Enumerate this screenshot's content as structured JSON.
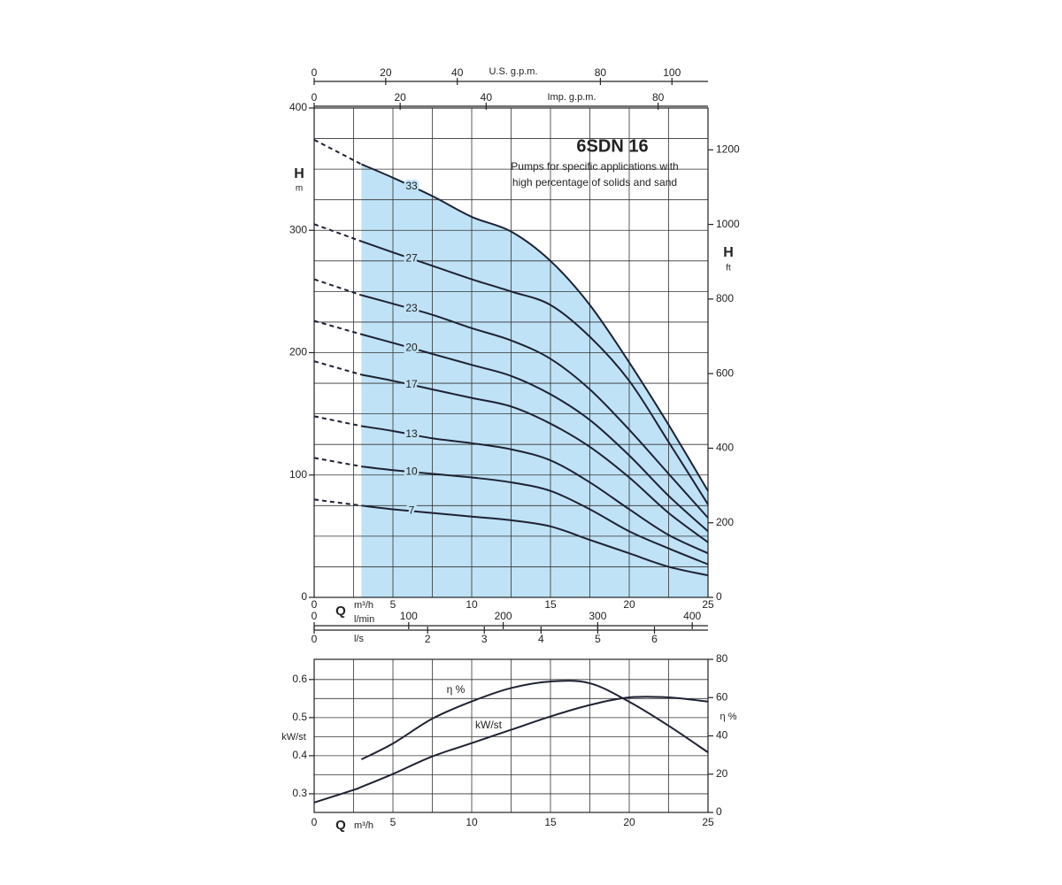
{
  "chart_data": [
    {
      "type": "line",
      "title": "6SDN 16",
      "subtitle": [
        "Pumps for specific applications with",
        "high percentage of solids and sand"
      ],
      "xlabel": "Q",
      "xunit": "m³/h",
      "ylabel": "H",
      "yunit": "m",
      "y2label": "H",
      "y2unit": "ft",
      "x": [
        0,
        3,
        5,
        7.5,
        10,
        12.5,
        15,
        17.5,
        20,
        22.5,
        25
      ],
      "xlim": [
        0,
        25
      ],
      "xticks": [
        0,
        5,
        10,
        15,
        20,
        25
      ],
      "minor_xticks": [
        2.5,
        7.5,
        12.5,
        17.5,
        22.5
      ],
      "ylim": [
        0,
        400
      ],
      "yticks": [
        0,
        100,
        200,
        300,
        400
      ],
      "minor_yticks": [
        25,
        50,
        75,
        125,
        150,
        175,
        225,
        250,
        275,
        325,
        350,
        375
      ],
      "y2lim": [
        0,
        1312.3
      ],
      "y2ticks": [
        0,
        200,
        400,
        600,
        800,
        1000,
        1200
      ],
      "grid": true,
      "shade_color": "#bfe2f6",
      "series": [
        {
          "name": "33",
          "color": "#1e2233",
          "values": [
            374,
            354,
            343,
            328,
            311,
            299,
            275,
            239,
            192,
            141,
            87
          ]
        },
        {
          "name": "27",
          "color": "#1e2233",
          "values": [
            305,
            291,
            282,
            271,
            260,
            250,
            239,
            213,
            177,
            127,
            76
          ]
        },
        {
          "name": "23",
          "color": "#1e2233",
          "values": [
            260,
            247,
            240,
            231,
            220,
            210,
            195,
            170,
            137,
            101,
            65
          ]
        },
        {
          "name": "20",
          "color": "#1e2233",
          "values": [
            226,
            215,
            208,
            199,
            190,
            181,
            166,
            145,
            116,
            83,
            54
          ]
        },
        {
          "name": "17",
          "color": "#1e2233",
          "values": [
            193,
            182,
            177,
            170,
            163,
            156,
            142,
            123,
            98,
            69,
            45
          ]
        },
        {
          "name": "13",
          "color": "#1e2233",
          "values": [
            148,
            140,
            136,
            130,
            126,
            121,
            112,
            94,
            72,
            51,
            36
          ]
        },
        {
          "name": "10",
          "color": "#1e2233",
          "values": [
            114,
            107,
            104,
            101,
            98,
            94,
            87,
            72,
            54,
            40,
            27
          ]
        },
        {
          "name": "7",
          "color": "#1e2233",
          "values": [
            80,
            75,
            72,
            69,
            66,
            63,
            58,
            47,
            36,
            25,
            18
          ]
        }
      ],
      "top_axes": [
        {
          "label": "U.S. g.p.m.",
          "xlim": [
            0,
            110.08
          ],
          "xticks": [
            0,
            20,
            40,
            80,
            100
          ]
        },
        {
          "label": "Imp. g.p.m.",
          "xlim": [
            0,
            91.6
          ],
          "xticks": [
            0,
            20,
            40,
            80
          ]
        }
      ],
      "bottom_axes": [
        {
          "label": "l/min",
          "xlim": [
            0,
            416.7
          ],
          "xticks": [
            0,
            100,
            200,
            300,
            400
          ]
        },
        {
          "label": "l/s",
          "xlim": [
            0,
            6.944
          ],
          "xticks": [
            0,
            2,
            3,
            4,
            5,
            6
          ]
        }
      ]
    },
    {
      "type": "line",
      "xlabel": "Q",
      "xunit": "m³/h",
      "ylabel": "kW/st",
      "y2label": "η %",
      "x": [
        0,
        2.5,
        3,
        5,
        7.5,
        10,
        12.5,
        15,
        17.5,
        20,
        22.5,
        25
      ],
      "xlim": [
        0,
        25
      ],
      "xticks": [
        0,
        5,
        10,
        15,
        20,
        25
      ],
      "minor_xticks": [
        2.5,
        7.5,
        12.5,
        17.5,
        22.5
      ],
      "ylim": [
        0.251,
        0.653
      ],
      "yticks": [
        0.3,
        0.4,
        0.5,
        0.6
      ],
      "minor_yticks": [
        0.35,
        0.45,
        0.55
      ],
      "y2lim": [
        0,
        80
      ],
      "y2ticks": [
        0,
        20,
        40,
        60,
        80
      ],
      "grid": true,
      "series": [
        {
          "name": "η %",
          "color": "#1e2233",
          "axis": "y2",
          "values": [
            null,
            null,
            27.7,
            36,
            49,
            58,
            65,
            68.4,
            67.5,
            57.8,
            45.3,
            31.4
          ]
        },
        {
          "name": "kW/st",
          "color": "#1e2233",
          "values": [
            0.277,
            0.31,
            0.318,
            0.352,
            0.398,
            0.433,
            0.468,
            0.503,
            0.533,
            0.553,
            0.553,
            0.542
          ]
        }
      ]
    }
  ]
}
